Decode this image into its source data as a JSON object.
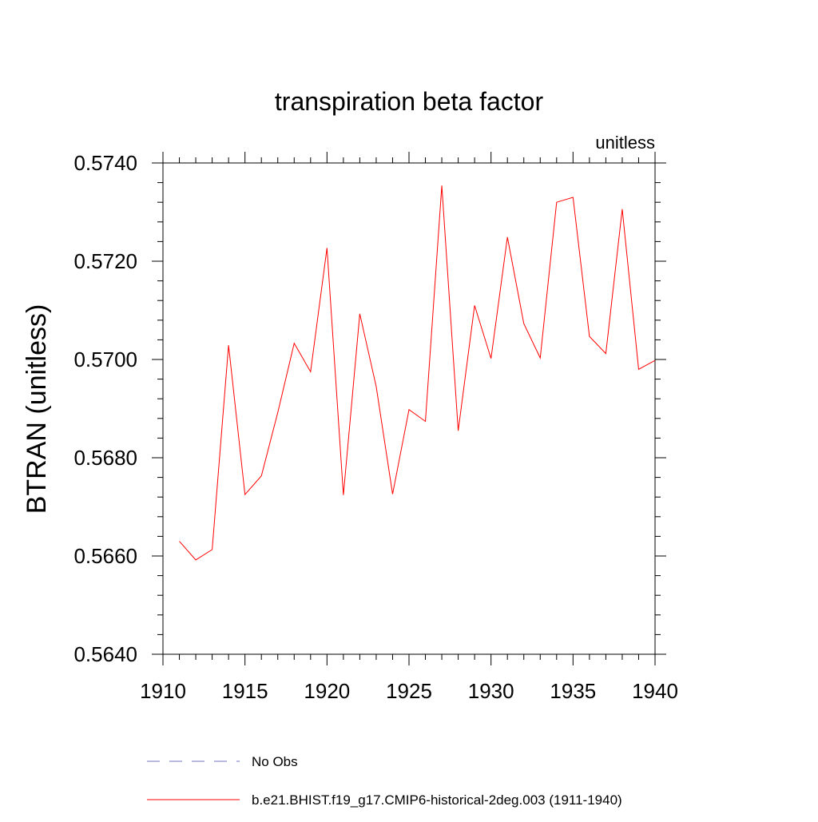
{
  "chart_data": {
    "type": "line",
    "title": "transpiration beta factor",
    "units_label": "unitless",
    "ylabel": "BTRAN  (unitless)",
    "xlabel": "",
    "xlim": [
      1910,
      1940
    ],
    "ylim": [
      0.564,
      0.574
    ],
    "x_ticks": [
      1910,
      1915,
      1920,
      1925,
      1930,
      1935,
      1940
    ],
    "x_tick_labels": [
      "1910",
      "1915",
      "1920",
      "1925",
      "1930",
      "1935",
      "1940"
    ],
    "y_ticks": [
      0.564,
      0.566,
      0.568,
      0.57,
      0.572,
      0.574
    ],
    "y_tick_labels": [
      "0.5640",
      "0.5660",
      "0.5680",
      "0.5700",
      "0.5720",
      "0.5740"
    ],
    "grid": false,
    "legend_position": "bottom",
    "series": [
      {
        "name": "No Obs",
        "color": "#7070c0",
        "style": "dashed",
        "x": [],
        "y": []
      },
      {
        "name": "b.e21.BHIST.f19_g17.CMIP6-historical-2deg.003 (1911-1940)",
        "color": "#ff0000",
        "style": "solid",
        "x": [
          1911,
          1912,
          1913,
          1914,
          1915,
          1916,
          1917,
          1918,
          1919,
          1920,
          1921,
          1922,
          1923,
          1924,
          1925,
          1926,
          1927,
          1928,
          1929,
          1930,
          1931,
          1932,
          1933,
          1934,
          1935,
          1936,
          1937,
          1938,
          1939,
          1940
        ],
        "y": [
          0.5663,
          0.56592,
          0.56613,
          0.57029,
          0.56725,
          0.56763,
          0.56892,
          0.57033,
          0.56975,
          0.57227,
          0.56724,
          0.57093,
          0.56945,
          0.56726,
          0.56898,
          0.56874,
          0.57354,
          0.56855,
          0.5711,
          0.57002,
          0.57249,
          0.57073,
          0.57003,
          0.5732,
          0.5733,
          0.57047,
          0.57012,
          0.57306,
          0.5698,
          0.56998
        ]
      }
    ]
  }
}
